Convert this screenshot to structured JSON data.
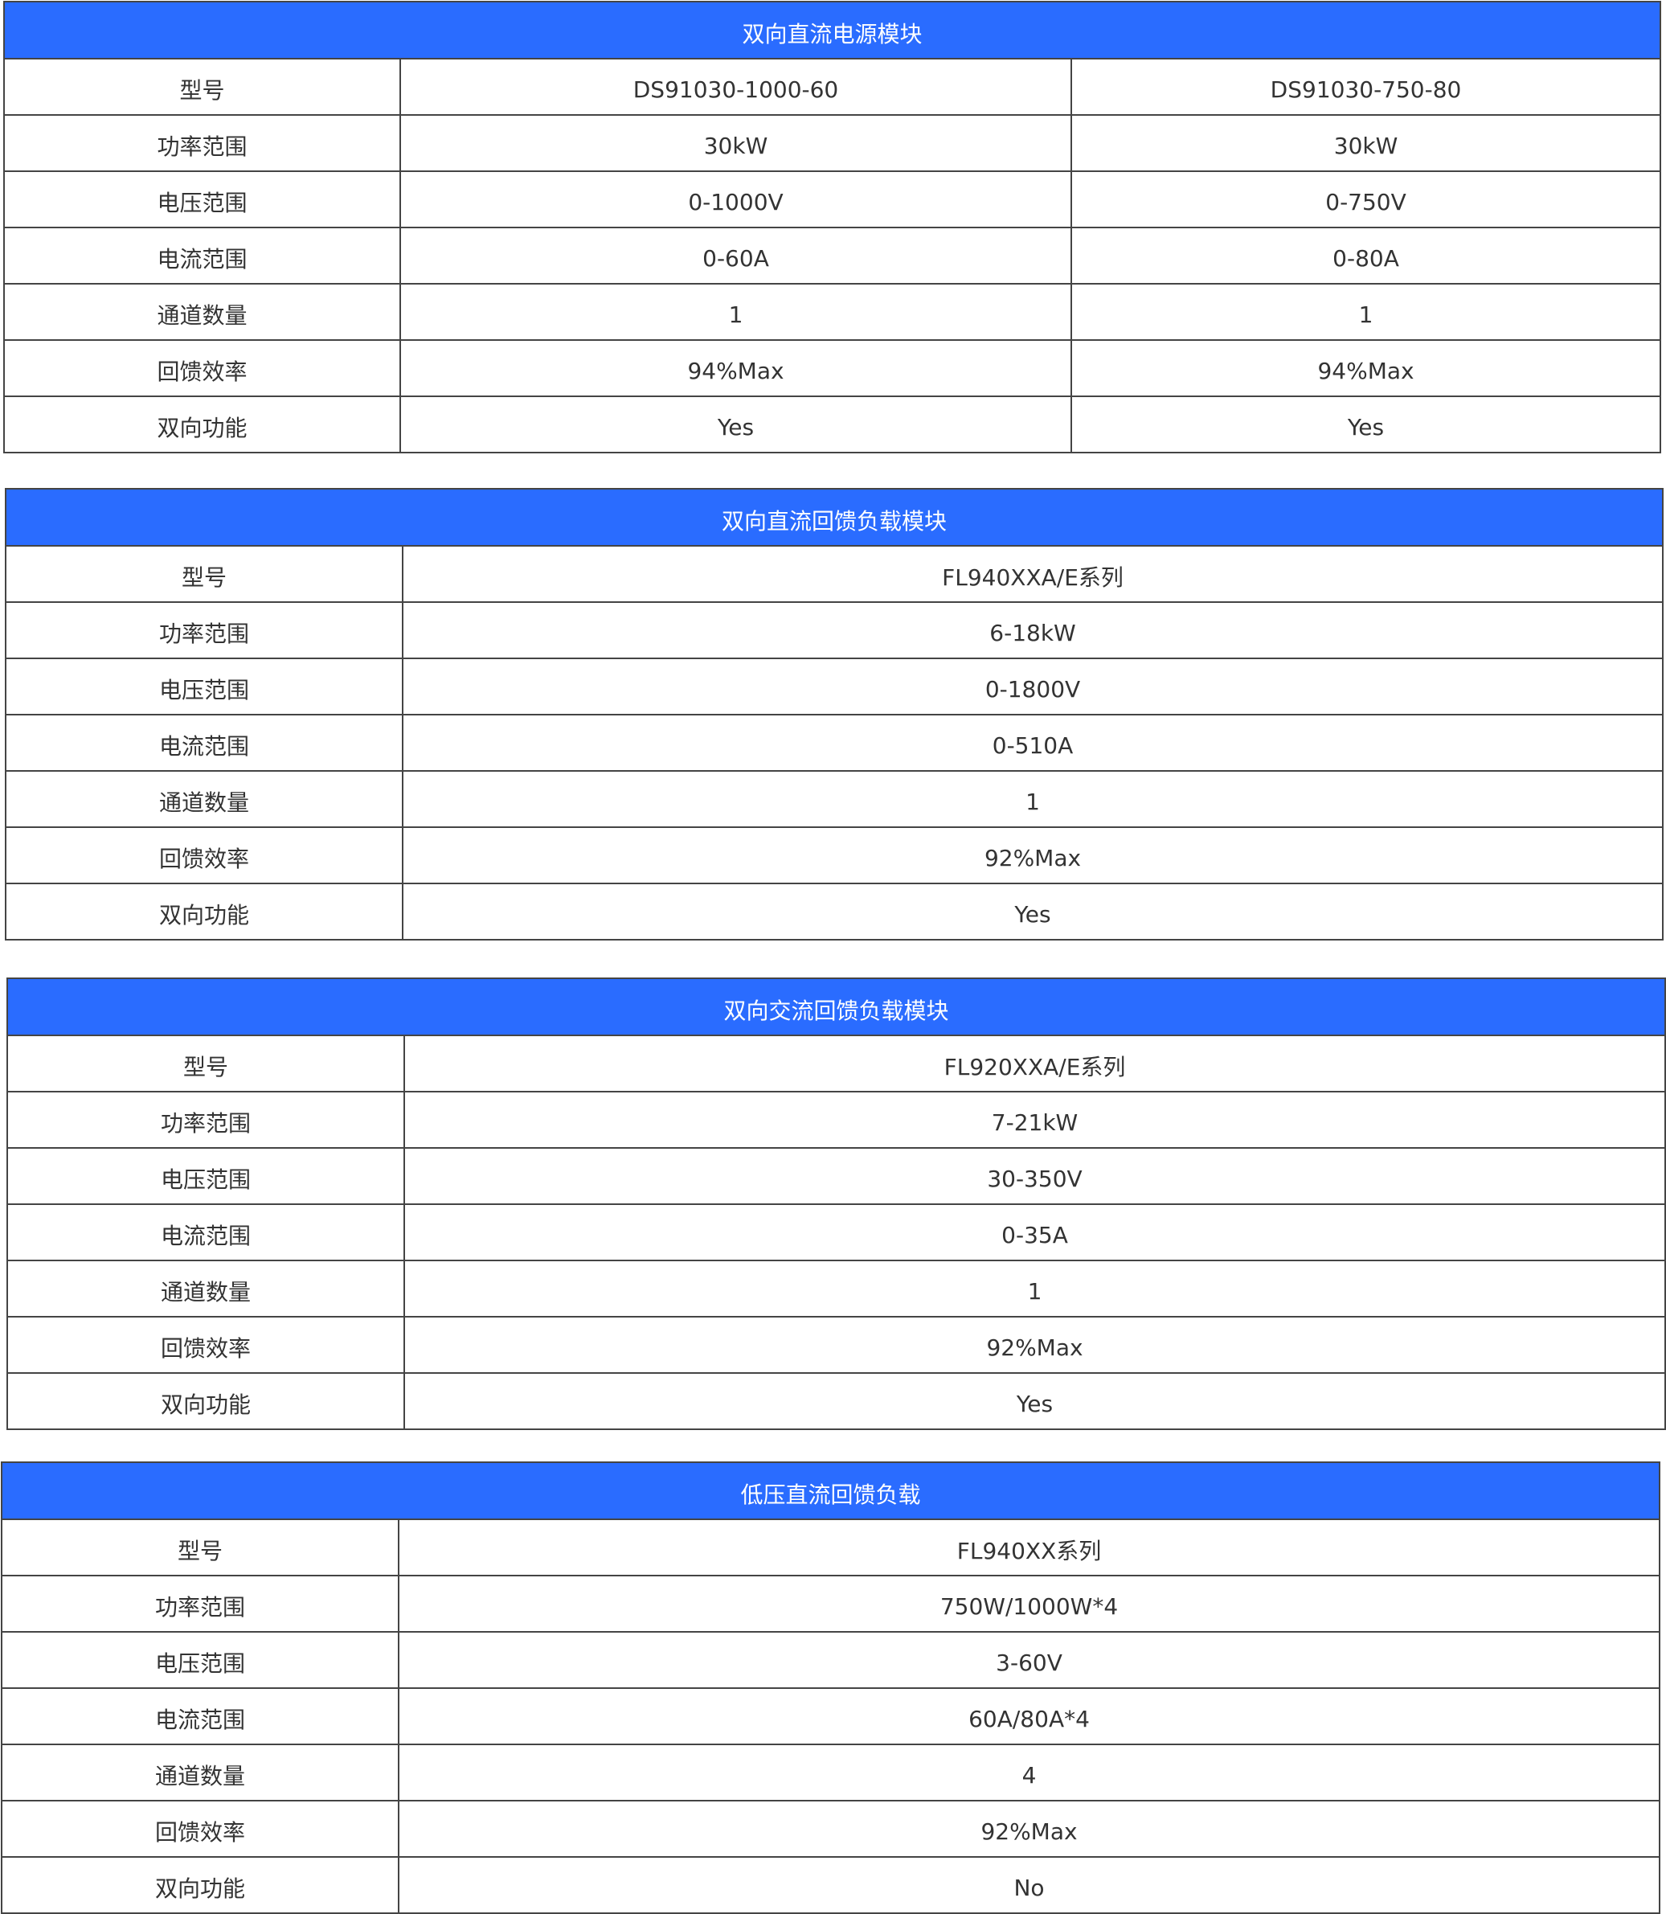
{
  "tables": [
    {
      "title": "双向直流电源模块",
      "rows": [
        {
          "label": "型号",
          "values": [
            "DS91030-1000-60",
            "DS91030-750-80"
          ]
        },
        {
          "label": "功率范围",
          "values": [
            "30kW",
            "30kW"
          ]
        },
        {
          "label": "电压范围",
          "values": [
            "0-1000V",
            "0-750V"
          ]
        },
        {
          "label": "电流范围",
          "values": [
            "0-60A",
            "0-80A"
          ]
        },
        {
          "label": "通道数量",
          "values": [
            "1",
            "1"
          ]
        },
        {
          "label": "回馈效率",
          "values": [
            "94%Max",
            "94%Max"
          ]
        },
        {
          "label": "双向功能",
          "values": [
            "Yes",
            "Yes"
          ]
        }
      ]
    },
    {
      "title": "双向直流回馈负载模块",
      "rows": [
        {
          "label": "型号",
          "values": [
            "FL940XXA/E系列"
          ]
        },
        {
          "label": "功率范围",
          "values": [
            "6-18kW"
          ]
        },
        {
          "label": "电压范围",
          "values": [
            "0-1800V"
          ]
        },
        {
          "label": "电流范围",
          "values": [
            "0-510A"
          ]
        },
        {
          "label": "通道数量",
          "values": [
            "1"
          ]
        },
        {
          "label": "回馈效率",
          "values": [
            "92%Max"
          ]
        },
        {
          "label": "双向功能",
          "values": [
            "Yes"
          ]
        }
      ]
    },
    {
      "title": "双向交流回馈负载模块",
      "rows": [
        {
          "label": "型号",
          "values": [
            "FL920XXA/E系列"
          ]
        },
        {
          "label": "功率范围",
          "values": [
            "7-21kW"
          ]
        },
        {
          "label": "电压范围",
          "values": [
            "30-350V"
          ]
        },
        {
          "label": "电流范围",
          "values": [
            "0-35A"
          ]
        },
        {
          "label": "通道数量",
          "values": [
            "1"
          ]
        },
        {
          "label": "回馈效率",
          "values": [
            "92%Max"
          ]
        },
        {
          "label": "双向功能",
          "values": [
            "Yes"
          ]
        }
      ]
    },
    {
      "title": "低压直流回馈负载",
      "rows": [
        {
          "label": "型号",
          "values": [
            "FL940XX系列"
          ]
        },
        {
          "label": "功率范围",
          "values": [
            "750W/1000W*4"
          ]
        },
        {
          "label": "电压范围",
          "values": [
            "3-60V"
          ]
        },
        {
          "label": "电流范围",
          "values": [
            "60A/80A*4"
          ]
        },
        {
          "label": "通道数量",
          "values": [
            "4"
          ]
        },
        {
          "label": "回馈效率",
          "values": [
            "92%Max"
          ]
        },
        {
          "label": "双向功能",
          "values": [
            "No"
          ]
        }
      ]
    }
  ],
  "colors": {
    "header_bg": "#2a6cff",
    "header_text": "#ffffff",
    "border": "#444444",
    "text": "#333333"
  }
}
